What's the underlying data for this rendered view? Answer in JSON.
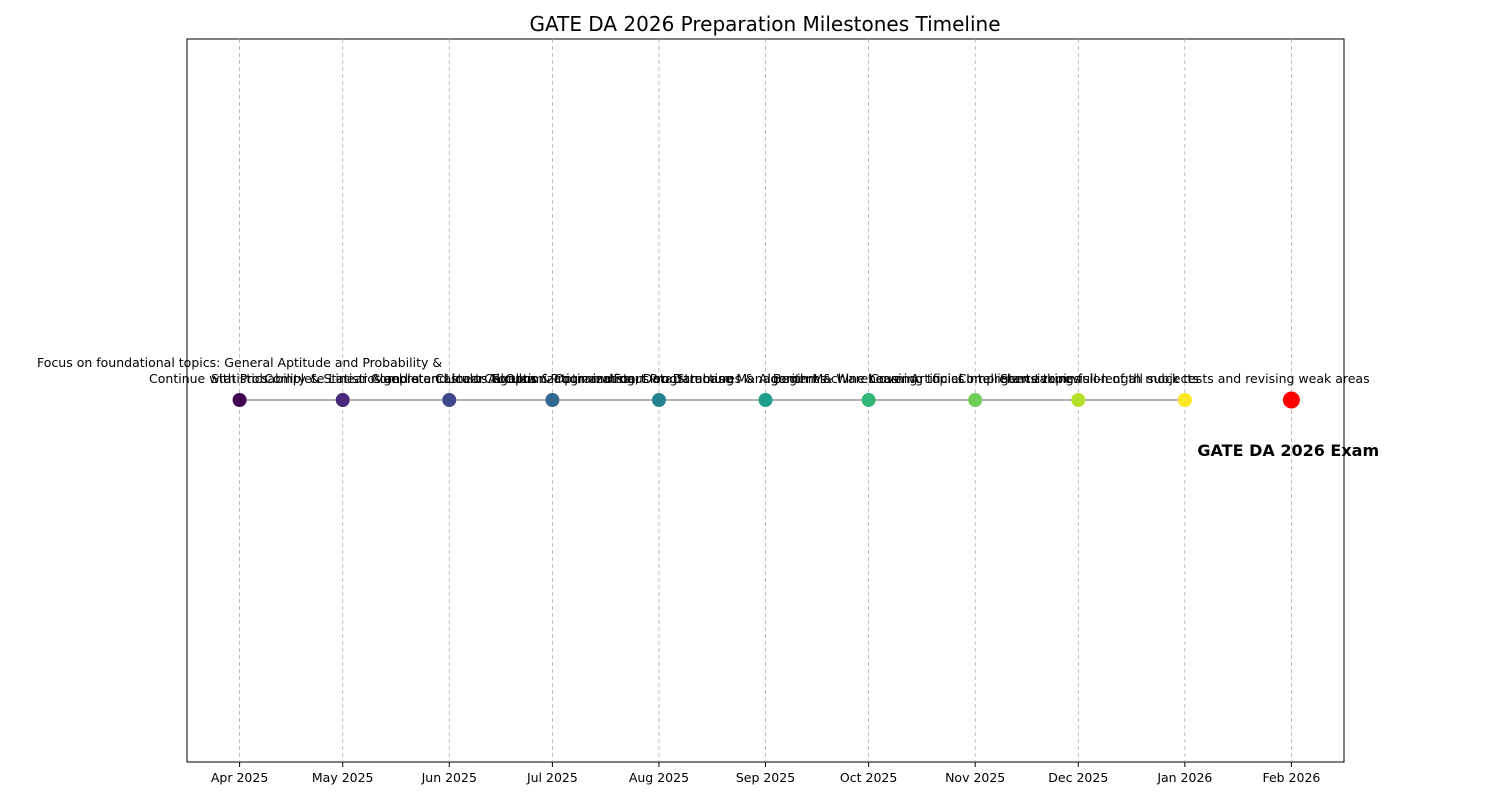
{
  "chart_data": {
    "type": "timeline",
    "title": "GATE DA 2026 Preparation Milestones Timeline",
    "x": [
      "Apr 2025",
      "May 2025",
      "Jun 2025",
      "Jul 2025",
      "Aug 2025",
      "Sep 2025",
      "Oct 2025",
      "Nov 2025",
      "Dec 2025",
      "Jan 2026",
      "Feb 2026"
    ],
    "labels": [
      [
        "Focus on foundational topics: General Aptitude and Probability &",
        "Statistics"
      ],
      [
        "Continue with Probability & Statistics and start Linear Algebra"
      ],
      [
        "Complete Linear Algebra and start Calculus & Optimization"
      ],
      [
        "Complete Calculus & Optimization and start Programming"
      ],
      [
        "Focus on Programming, Data Structures & Algorithms"
      ],
      [
        "Focus on Database Management & Warehousing"
      ],
      [
        "Begin Machine Learning topics"
      ],
      [
        "Cover Artificial Intelligence topics"
      ],
      [
        "Comprehensive revision of all subjects"
      ],
      [
        "Start taking full-length mock tests and revising weak areas"
      ],
      [
        "GATE DA 2026 Exam"
      ]
    ],
    "colors": [
      "#440154",
      "#482878",
      "#3e4989",
      "#31688e",
      "#26828e",
      "#1f9e89",
      "#35b779",
      "#6ece58",
      "#b5de2b",
      "#fde725",
      "#ff0000"
    ],
    "highlight_last": true,
    "grid": true
  }
}
